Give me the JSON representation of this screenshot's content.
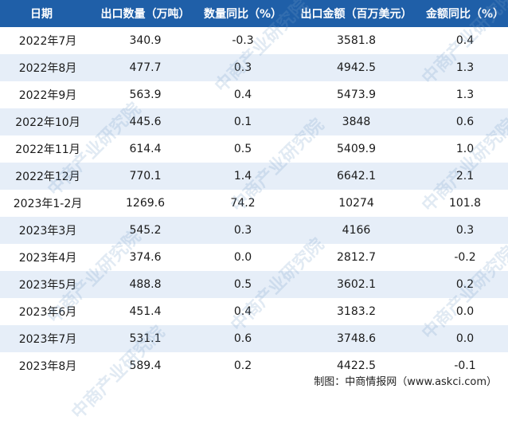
{
  "headers": [
    "日期",
    "出口数量（万吨）",
    "数量同比（%）",
    "出口金额（百万美元）",
    "金额同比（%）"
  ],
  "rows": [
    {
      "date": "2022年7月",
      "qty": "340.9",
      "qty_yoy": "-0.3",
      "amount": "3581.8",
      "amount_yoy": "0.4"
    },
    {
      "date": "2022年8月",
      "qty": "477.7",
      "qty_yoy": "0.3",
      "amount": "4942.5",
      "amount_yoy": "1.3"
    },
    {
      "date": "2022年9月",
      "qty": "563.9",
      "qty_yoy": "0.4",
      "amount": "5473.9",
      "amount_yoy": "1.3"
    },
    {
      "date": "2022年10月",
      "qty": "445.6",
      "qty_yoy": "0.1",
      "amount": "3848",
      "amount_yoy": "0.6"
    },
    {
      "date": "2022年11月",
      "qty": "614.4",
      "qty_yoy": "0.5",
      "amount": "5409.9",
      "amount_yoy": "1.0"
    },
    {
      "date": "2022年12月",
      "qty": "770.1",
      "qty_yoy": "1.4",
      "amount": "6642.1",
      "amount_yoy": "2.1"
    },
    {
      "date": "2023年1-2月",
      "qty": "1269.6",
      "qty_yoy": "74.2",
      "amount": "10274",
      "amount_yoy": "101.8"
    },
    {
      "date": "2023年3月",
      "qty": "545.2",
      "qty_yoy": "0.3",
      "amount": "4166",
      "amount_yoy": "0.3"
    },
    {
      "date": "2023年4月",
      "qty": "374.6",
      "qty_yoy": "0.0",
      "amount": "2812.7",
      "amount_yoy": "-0.2"
    },
    {
      "date": "2023年5月",
      "qty": "488.8",
      "qty_yoy": "0.5",
      "amount": "3602.1",
      "amount_yoy": "0.2"
    },
    {
      "date": "2023年6月",
      "qty": "451.4",
      "qty_yoy": "0.4",
      "amount": "3183.2",
      "amount_yoy": "0.0"
    },
    {
      "date": "2023年7月",
      "qty": "531.1",
      "qty_yoy": "0.6",
      "amount": "3748.6",
      "amount_yoy": "0.0"
    },
    {
      "date": "2023年8月",
      "qty": "589.4",
      "qty_yoy": "0.2",
      "amount": "4422.5",
      "amount_yoy": "-0.1"
    }
  ],
  "footer": "制图：中商情报网（www.askci.com）",
  "watermark": "中商产业研究院",
  "colors": {
    "header_bg": "#1f5fa8",
    "alt_row": "#e6eef8"
  }
}
